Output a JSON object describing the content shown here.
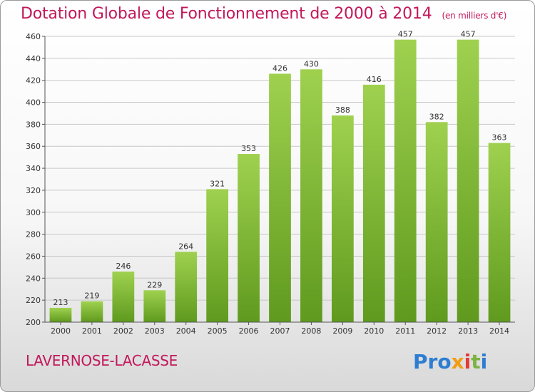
{
  "chart_data": {
    "type": "bar",
    "title": "Dotation Globale de Fonctionnement de 2000 à 2014",
    "subtitle": "(en milliers d'€)",
    "categories": [
      "2000",
      "2001",
      "2002",
      "2003",
      "2004",
      "2005",
      "2006",
      "2007",
      "2008",
      "2009",
      "2010",
      "2011",
      "2012",
      "2013",
      "2014"
    ],
    "values": [
      213,
      219,
      246,
      229,
      264,
      321,
      353,
      426,
      430,
      388,
      416,
      457,
      382,
      457,
      363
    ],
    "ylim": [
      200,
      460
    ],
    "yticks": [
      200,
      220,
      240,
      260,
      280,
      300,
      320,
      340,
      360,
      380,
      400,
      420,
      440,
      460
    ],
    "grid": true,
    "bar_color": "#8cc63f"
  },
  "footer": {
    "commune": "LAVERNOSE-LACASSE",
    "logo": [
      "Pro",
      "x",
      "i",
      "t",
      "i"
    ]
  }
}
